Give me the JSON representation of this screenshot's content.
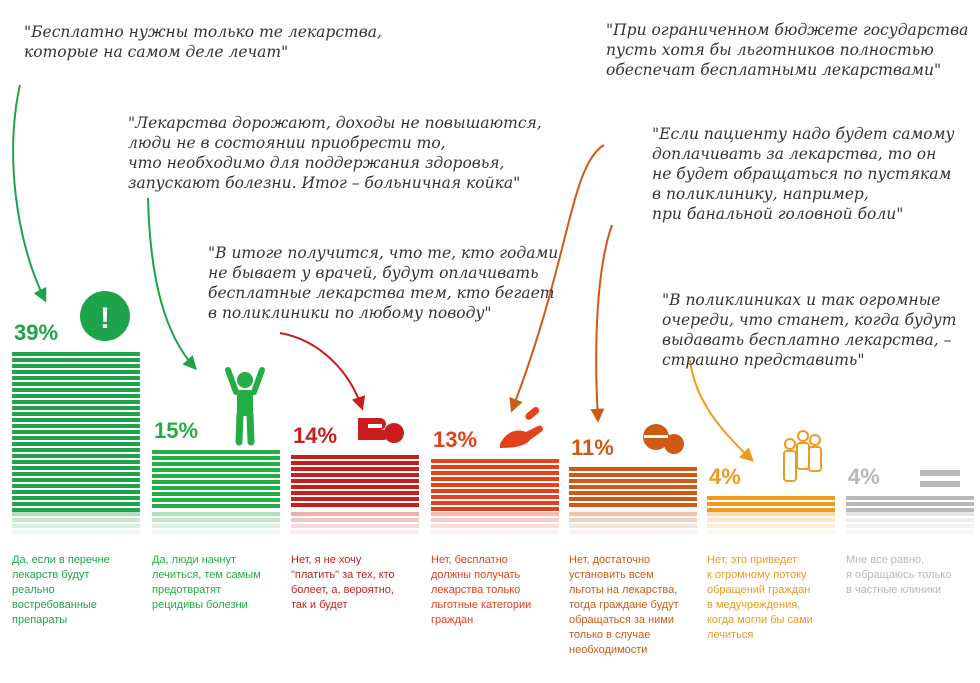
{
  "colors": {
    "c1": "#1fa34a",
    "c2": "#24ad45",
    "c3": "#c81e1e",
    "c4": "#e2411c",
    "c5": "#cf5a14",
    "c6": "#ee9a1d",
    "c7": "#b8b8b8"
  },
  "chart_data": {
    "type": "bar",
    "unit": "%",
    "ylim": [
      0,
      39
    ],
    "categories": [
      "Да, если в перечне\nлекарств будут\nреально\nвостребованные\nпрепараты",
      "Да, люди начнут\nлечиться, тем самым\nпредотвратят\nрецидивы болезни",
      "Нет, я не хочу\n\"платить\" за тех, кто\nболеет, а, вероятно,\nтак и будет",
      "Нет, бесплатно\nдолжны получать\nлекарства только\nльготные категории\nграждан",
      "Нет, достаточно\nустановить всем\nльготы на лекарства,\nтогда граждане будут\nобращаться за ними\nтолько в случае\nнеобходимости",
      "Нет, это приведет\nк огромному потоку\nобращений граждан\nв медучреждения,\nкогда могли бы сами\nлечиться",
      "Мне все равно,\nя обращаюсь только\nв частные клиники"
    ],
    "values": [
      39,
      15,
      14,
      13,
      11,
      4,
      4
    ],
    "labels": [
      "39%",
      "15%",
      "14%",
      "13%",
      "11%",
      "4%",
      "4%"
    ],
    "icons": [
      "exclamation-icon",
      "person-cheering-icon",
      "hand-pill-icon",
      "hand-pill-icon",
      "pill-icon",
      "people-icon",
      "lines-icon"
    ]
  },
  "quotes": [
    "\"Бесплатно нужны только те лекарства,\nкоторые на самом деле лечат\"",
    "\"Лекарства дорожают, доходы не повышаются,\nлюди не в состоянии приобрести то,\nчто необходимо для поддержания здоровья,\nзапускают болезни. Итог – больничная койка\"",
    "\"В итоге получится, что те, кто годами\nне бывает у врачей, будут оплачивать\nбесплатные лекарства тем, кто бегает\nв поликлиники по любому поводу\"",
    "\"При ограниченном бюджете государства\nпусть хотя бы льготников полностью\nобеспечат бесплатными лекарствами\"",
    "\"Если пациенту надо будет самому\nдоплачивать за лекарства, то он\nне будет обращаться по пустякам\nв поликлинику, например,\nпри банальной головной боли\"",
    "\"В поликлиниках и так огромные\nочереди, что станет, когда будут\nвыдавать бесплатно лекарства, –\nстрашно представить\""
  ],
  "exclamation": "!"
}
